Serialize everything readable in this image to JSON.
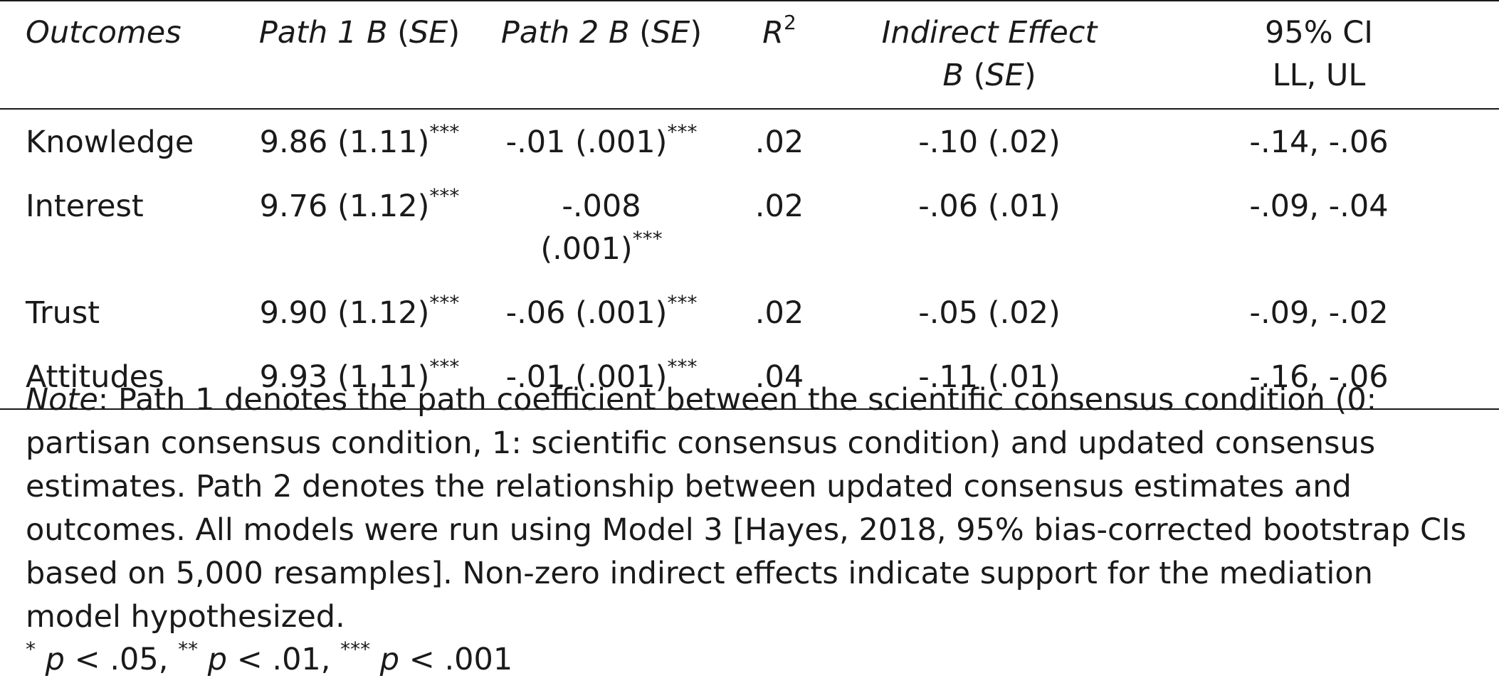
{
  "table": {
    "headers": {
      "outcomes": "Outcomes",
      "path1": {
        "label": "Path 1",
        "b": "B",
        "open": "(",
        "se": "SE",
        "close": ")"
      },
      "path2": {
        "label": "Path 2",
        "b": "B",
        "open": "(",
        "se": "SE",
        "close": ")"
      },
      "r2": {
        "r": "R",
        "sup": "2"
      },
      "indirect": {
        "line1": "Indirect Effect",
        "b": "B",
        "open": "(",
        "se": "SE",
        "close": ")"
      },
      "ci": {
        "line1": "95% CI",
        "line2": "LL, UL"
      }
    },
    "rows": [
      {
        "outcome": "Knowledge",
        "path1": "9.86 (1.11)",
        "path1_sig": "***",
        "path2": "-.01 (.001)",
        "path2_sig": "***",
        "r2": ".02",
        "indirect": "-.10 (.02)",
        "ci": "-.14, -.06"
      },
      {
        "outcome": "Interest",
        "path1": "9.76 (1.12)",
        "path1_sig": "***",
        "path2": "-.008 (.001)",
        "path2_sig": "***",
        "r2": ".02",
        "indirect": "-.06 (.01)",
        "ci": "-.09, -.04"
      },
      {
        "outcome": "Trust",
        "path1": "9.90 (1.12)",
        "path1_sig": "***",
        "path2": "-.06 (.001)",
        "path2_sig": "***",
        "r2": ".02",
        "indirect": "-.05 (.02)",
        "ci": "-.09, -.02"
      },
      {
        "outcome": "Attitudes",
        "path1": "9.93 (1.11)",
        "path1_sig": "***",
        "path2": "-.01 (.001)",
        "path2_sig": "***",
        "r2": ".04",
        "indirect": "-.11 (.01)",
        "ci": "-.16, -.06"
      }
    ]
  },
  "note": {
    "label": "Note",
    "text": ": Path 1 denotes the path coefficient between the scientific consensus condition (0: partisan consensus condition, 1: scientific consensus condition) and updated consensus estimates. Path 2 denotes the relationship between updated consensus estimates and outcomes. All models were run using Model 3 [Hayes, 2018, 95% bias-corrected bootstrap CIs based on 5,000 resamples]. Non-zero indirect effects indicate support for the mediation model hypothesized."
  },
  "footnote": {
    "s1": "*",
    "t1": " p < .05, ",
    "s2": "**",
    "t2": " p < .01, ",
    "s3": "***",
    "t3": " p < .001",
    "p": "p",
    "v1": " < .05, ",
    "v2": " < .01, ",
    "v3": " < .001"
  }
}
